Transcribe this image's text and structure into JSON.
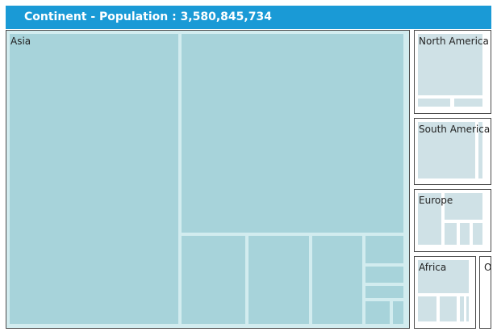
{
  "header": {
    "title": "Continent - Population : 3,580,845,734"
  },
  "treemap": {
    "regions": [
      {
        "id": "asia",
        "label": "Asia"
      },
      {
        "id": "north-america",
        "label": "North America"
      },
      {
        "id": "south-america",
        "label": "South America"
      },
      {
        "id": "europe",
        "label": "Europe"
      },
      {
        "id": "africa",
        "label": "Africa"
      },
      {
        "id": "oceania",
        "label": "O"
      }
    ]
  },
  "colors": {
    "header_bg": "#1a9ad6",
    "header_text": "#ffffff",
    "asia_leaf": "#a7d3da",
    "asia_frame": "#d2ecef",
    "other_leaf": "#cfe1e6",
    "border": "#4a4a4a"
  }
}
